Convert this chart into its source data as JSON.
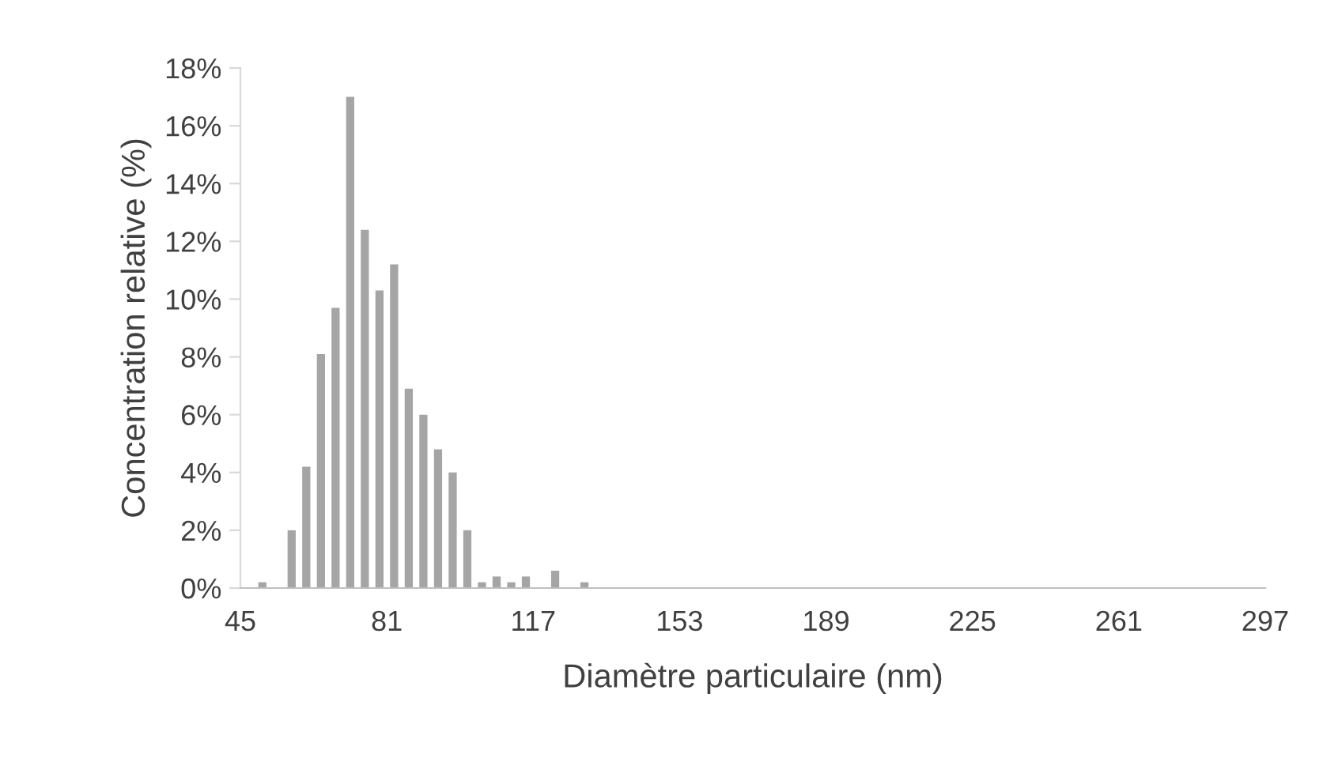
{
  "chart_data": {
    "type": "bar",
    "xlabel": "Diamètre particulaire (nm)",
    "ylabel": "Concentration relative (%)",
    "x": [
      50.4,
      54.0,
      57.6,
      61.2,
      64.8,
      68.4,
      72.0,
      75.6,
      79.2,
      82.8,
      86.4,
      90.0,
      93.6,
      97.2,
      100.8,
      104.4,
      108.0,
      111.6,
      115.2,
      118.8,
      122.4,
      126.0,
      129.6
    ],
    "values": [
      0.2,
      0,
      2.0,
      4.2,
      8.1,
      9.7,
      17.0,
      12.4,
      10.3,
      11.2,
      6.9,
      6.0,
      4.8,
      4.0,
      2.0,
      0.2,
      0.4,
      0.2,
      0.4,
      0,
      0.6,
      0,
      0.2
    ],
    "color": "#a5a5a5",
    "xlim": [
      45,
      297
    ],
    "xticks": [
      45,
      81,
      117,
      153,
      189,
      225,
      261,
      297
    ],
    "ylim": [
      0,
      18
    ],
    "yticks": [
      {
        "value": 0,
        "label": "0%"
      },
      {
        "value": 2,
        "label": "2%"
      },
      {
        "value": 4,
        "label": "4%"
      },
      {
        "value": 6,
        "label": "6%"
      },
      {
        "value": 8,
        "label": "8%"
      },
      {
        "value": 10,
        "label": "10%"
      },
      {
        "value": 12,
        "label": "12%"
      },
      {
        "value": 14,
        "label": "14%"
      },
      {
        "value": 16,
        "label": "16%"
      },
      {
        "value": 18,
        "label": "18%"
      }
    ],
    "grid": false,
    "legend": false
  }
}
